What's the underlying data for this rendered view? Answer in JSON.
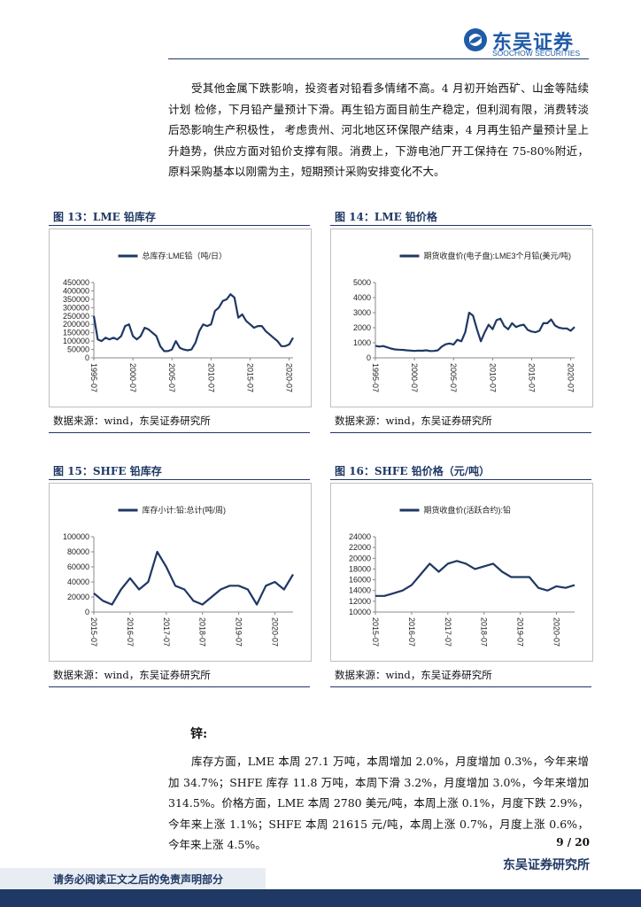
{
  "header": {
    "brand": "东吴证券",
    "brand_en": "SOOCHOW SECURITIES"
  },
  "lead_paragraph": "受其他金属下跌影响，投资者对铅看多情绪不高。4 月初开始西矿、山金等陆续计划 检修，下月铅产量预计下滑。再生铅方面目前生产稳定，但利润有限，消费转淡后恐影响生产积极性， 考虑贵州、河北地区环保限产结束，4 月再生铅产量预计呈上升趋势，供应方面对铅价支撑有限。消费上，下游电池厂开工保持在 75-80%附近，原料采购基本以刚需为主，短期预计采购安排变化不大。",
  "chart_data": [
    {
      "type": "line",
      "title": "图 13：LME 铅库存",
      "source": "数据来源：wind，东吴证券研究所",
      "x": [
        "1995-07",
        "1996-01",
        "1996-07",
        "1997-01",
        "1997-07",
        "1998-01",
        "1998-07",
        "1999-01",
        "1999-07",
        "2000-01",
        "2000-07",
        "2001-01",
        "2001-07",
        "2002-01",
        "2002-07",
        "2003-01",
        "2003-07",
        "2004-01",
        "2004-07",
        "2005-01",
        "2005-07",
        "2006-01",
        "2006-07",
        "2007-01",
        "2007-07",
        "2008-01",
        "2008-07",
        "2009-01",
        "2009-07",
        "2010-01",
        "2010-07",
        "2011-01",
        "2011-07",
        "2012-01",
        "2012-07",
        "2013-01",
        "2013-07",
        "2014-01",
        "2014-07",
        "2015-01",
        "2015-07",
        "2016-01",
        "2016-07",
        "2017-01",
        "2017-07",
        "2018-01",
        "2018-07",
        "2019-01",
        "2019-07",
        "2020-01",
        "2020-07",
        "2021-01"
      ],
      "series": [
        {
          "name": "总库存:LME铅（吨/日）",
          "color": "#1f3864",
          "values": [
            250000,
            110000,
            100000,
            120000,
            110000,
            120000,
            110000,
            130000,
            190000,
            200000,
            130000,
            110000,
            130000,
            180000,
            170000,
            150000,
            130000,
            70000,
            40000,
            40000,
            50000,
            100000,
            60000,
            50000,
            45000,
            50000,
            90000,
            160000,
            200000,
            190000,
            200000,
            280000,
            300000,
            340000,
            350000,
            380000,
            360000,
            240000,
            260000,
            220000,
            200000,
            180000,
            190000,
            190000,
            160000,
            140000,
            120000,
            100000,
            70000,
            70000,
            80000,
            120000
          ]
        }
      ],
      "ylim": [
        0,
        450000
      ],
      "yticks": [
        0,
        50000,
        100000,
        150000,
        200000,
        250000,
        300000,
        350000,
        400000,
        450000
      ],
      "xticks": [
        "1995-07",
        "2000-07",
        "2005-07",
        "2010-07",
        "2015-07",
        "2020-07"
      ]
    },
    {
      "type": "line",
      "title": "图 14：LME 铅价格",
      "source": "数据来源：wind，东吴证券研究所",
      "x": [
        "1995-07",
        "1996-01",
        "1996-07",
        "1997-01",
        "1997-07",
        "1998-01",
        "1998-07",
        "1999-01",
        "1999-07",
        "2000-01",
        "2000-07",
        "2001-01",
        "2001-07",
        "2002-01",
        "2002-07",
        "2003-01",
        "2003-07",
        "2004-01",
        "2004-07",
        "2005-01",
        "2005-07",
        "2006-01",
        "2006-07",
        "2007-01",
        "2007-07",
        "2008-01",
        "2008-07",
        "2009-01",
        "2009-07",
        "2010-01",
        "2010-07",
        "2011-01",
        "2011-07",
        "2012-01",
        "2012-07",
        "2013-01",
        "2013-07",
        "2014-01",
        "2014-07",
        "2015-01",
        "2015-07",
        "2016-01",
        "2016-07",
        "2017-01",
        "2017-07",
        "2018-01",
        "2018-07",
        "2019-01",
        "2019-07",
        "2020-01",
        "2020-07",
        "2021-01"
      ],
      "series": [
        {
          "name": "期货收盘价(电子盘):LME3个月铅(美元/吨)",
          "color": "#1f3864",
          "values": [
            800,
            750,
            780,
            700,
            620,
            560,
            540,
            530,
            500,
            480,
            460,
            480,
            470,
            500,
            450,
            460,
            500,
            750,
            900,
            950,
            880,
            1200,
            1100,
            1700,
            3000,
            2800,
            1900,
            1100,
            1700,
            2200,
            1900,
            2500,
            2600,
            2100,
            1900,
            2300,
            2050,
            2150,
            2200,
            1850,
            1750,
            1700,
            1800,
            2300,
            2300,
            2550,
            2150,
            2000,
            1950,
            1950,
            1800,
            2050
          ]
        }
      ],
      "ylim": [
        0,
        5000
      ],
      "yticks": [
        0,
        1000,
        2000,
        3000,
        4000,
        5000
      ],
      "xticks": [
        "1995-07",
        "2000-07",
        "2005-07",
        "2010-07",
        "2015-07",
        "2020-07"
      ]
    },
    {
      "type": "line",
      "title": "图 15：SHFE 铅库存",
      "source": "数据来源：wind，东吴证券研究所",
      "x": [
        "2015-07",
        "2015-10",
        "2016-01",
        "2016-04",
        "2016-07",
        "2016-10",
        "2017-01",
        "2017-04",
        "2017-07",
        "2017-10",
        "2018-01",
        "2018-04",
        "2018-07",
        "2018-10",
        "2019-01",
        "2019-04",
        "2019-07",
        "2019-10",
        "2020-01",
        "2020-04",
        "2020-07",
        "2020-10",
        "2021-01"
      ],
      "series": [
        {
          "name": "库存小计:铅:总计(吨/周)",
          "color": "#1f3864",
          "values": [
            25000,
            15000,
            10000,
            30000,
            45000,
            30000,
            40000,
            80000,
            60000,
            35000,
            30000,
            15000,
            10000,
            20000,
            30000,
            35000,
            35000,
            30000,
            10000,
            35000,
            40000,
            30000,
            50000
          ]
        }
      ],
      "ylim": [
        0,
        100000
      ],
      "yticks": [
        0,
        20000,
        40000,
        60000,
        80000,
        100000
      ],
      "xticks": [
        "2015-07",
        "2016-07",
        "2017-07",
        "2018-07",
        "2019-07",
        "2020-07"
      ]
    },
    {
      "type": "line",
      "title": "图 16：SHFE 铅价格（元/吨）",
      "source": "数据来源：wind，东吴证券研究所",
      "x": [
        "2015-07",
        "2015-10",
        "2016-01",
        "2016-04",
        "2016-07",
        "2016-10",
        "2017-01",
        "2017-04",
        "2017-07",
        "2017-10",
        "2018-01",
        "2018-04",
        "2018-07",
        "2018-10",
        "2019-01",
        "2019-04",
        "2019-07",
        "2019-10",
        "2020-01",
        "2020-04",
        "2020-07",
        "2020-10",
        "2021-01"
      ],
      "series": [
        {
          "name": "期货收盘价(活跃合约):铅",
          "color": "#1f3864",
          "values": [
            13000,
            13000,
            13500,
            14000,
            15000,
            17000,
            19000,
            17500,
            19000,
            19500,
            19000,
            18000,
            18500,
            19000,
            17500,
            16500,
            16500,
            16500,
            14500,
            14000,
            14800,
            14500,
            15000
          ]
        }
      ],
      "ylim": [
        10000,
        24000
      ],
      "yticks": [
        10000,
        12000,
        14000,
        16000,
        18000,
        20000,
        22000,
        24000
      ],
      "xticks": [
        "2015-07",
        "2016-07",
        "2017-07",
        "2018-07",
        "2019-07",
        "2020-07"
      ]
    }
  ],
  "zinc": {
    "heading": "锌:",
    "paragraph": "库存方面，LME 本周 27.1 万吨，本周增加 2.0%，月度增加 0.3%，今年来增加 34.7%；SHFE 库存 11.8 万吨，本周下滑 3.2%，月度增加 3.0%，今年来增加 314.5%。价格方面，LME 本周 2780 美元/吨，本周上涨 0.1%，月度下跌 2.9%，今年来上涨 1.1%；SHFE 本周 21615 元/吨，本周上涨 0.7%，月度上涨 0.6%，今年来上涨 4.5%。"
  },
  "footer": {
    "page": "9 / 20",
    "institute": "东吴证券研究所",
    "disclaimer": "请务必阅读正文之后的免责声明部分"
  }
}
